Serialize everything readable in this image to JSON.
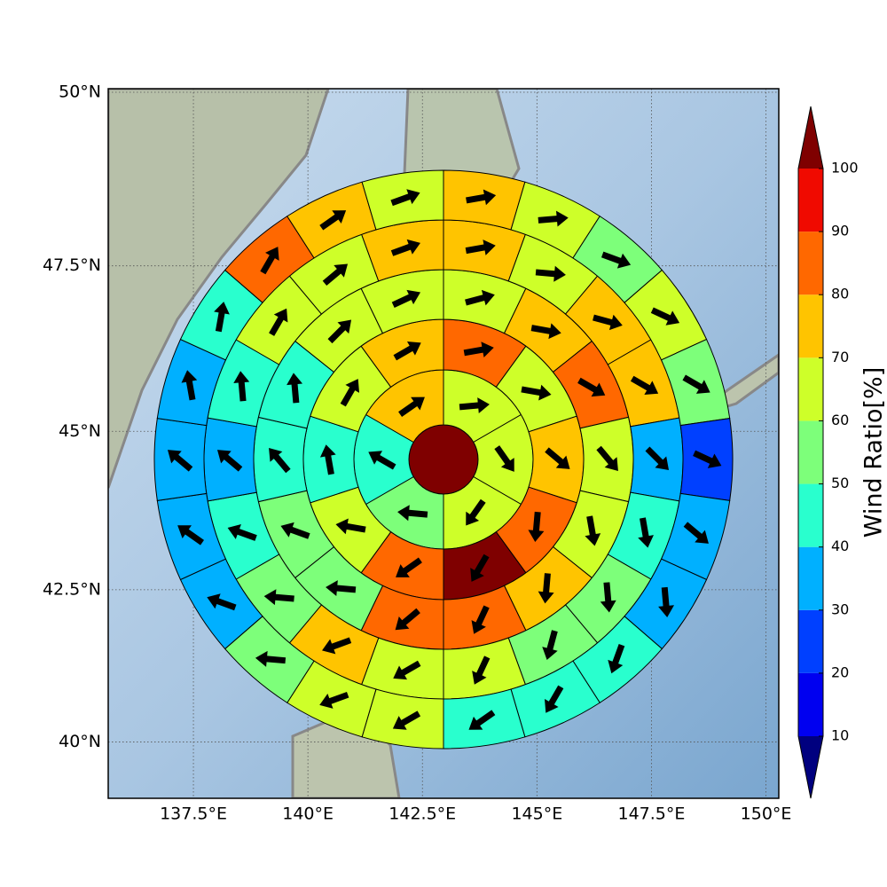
{
  "chart_data": {
    "type": "polar-sector-map",
    "xlim": [
      135.64,
      150.28
    ],
    "ylim": [
      39.05,
      50.05
    ],
    "xticks": [
      {
        "value": 137.5,
        "label": "137.5°E"
      },
      {
        "value": 140,
        "label": "140°E"
      },
      {
        "value": 142.5,
        "label": "142.5°E"
      },
      {
        "value": 145,
        "label": "145°E"
      },
      {
        "value": 147.5,
        "label": "147.5°E"
      },
      {
        "value": 150,
        "label": "150°E"
      }
    ],
    "yticks": [
      {
        "value": 40,
        "label": "40°N"
      },
      {
        "value": 42.5,
        "label": "42.5°N"
      },
      {
        "value": 45,
        "label": "45°N"
      },
      {
        "value": 47.5,
        "label": "47.5°N"
      },
      {
        "value": 50,
        "label": "50°N"
      }
    ],
    "grid": true,
    "center_value": 105,
    "rings": [
      {
        "values": [
          65,
          65,
          65,
          55,
          45,
          72
        ],
        "angles": [
          5,
          -55,
          -125,
          175,
          150,
          35
        ]
      },
      {
        "values": [
          85,
          65,
          75,
          85,
          105,
          85,
          65,
          45,
          65,
          72
        ],
        "angles": [
          10,
          -10,
          -40,
          -95,
          -120,
          -145,
          170,
          100,
          60,
          30
        ]
      },
      {
        "values": [
          65,
          75,
          85,
          65,
          65,
          75,
          85,
          85,
          55,
          55,
          45,
          45,
          65,
          65
        ],
        "angles": [
          15,
          -10,
          -30,
          -50,
          -80,
          -95,
          -115,
          -140,
          175,
          160,
          130,
          95,
          45,
          25
        ]
      },
      {
        "values": [
          75,
          65,
          75,
          75,
          35,
          45,
          55,
          55,
          65,
          65,
          72,
          55,
          45,
          35,
          45,
          65,
          65,
          75
        ],
        "angles": [
          10,
          -5,
          -15,
          -30,
          -45,
          -80,
          -85,
          -105,
          -115,
          -150,
          -160,
          175,
          160,
          140,
          95,
          60,
          40,
          20
        ]
      },
      {
        "values": [
          75,
          65,
          55,
          65,
          55,
          25,
          35,
          35,
          45,
          45,
          45,
          65,
          65,
          55,
          35,
          35,
          35,
          35,
          45,
          85,
          75,
          65
        ],
        "angles": [
          10,
          5,
          -20,
          -25,
          -30,
          -25,
          -40,
          -85,
          -110,
          -120,
          -145,
          -150,
          -160,
          175,
          160,
          145,
          140,
          100,
          80,
          60,
          35,
          20
        ]
      }
    ],
    "colorbar": {
      "label": "Wind Ratio[%]",
      "ticks": [
        10,
        20,
        30,
        40,
        50,
        60,
        70,
        80,
        90,
        100
      ],
      "colors": [
        "#00007f",
        "#0000f0",
        "#0040ff",
        "#00b0ff",
        "#29ffce",
        "#7dff7a",
        "#ceff29",
        "#ffc400",
        "#ff6800",
        "#f00a00",
        "#7f0000"
      ]
    }
  }
}
